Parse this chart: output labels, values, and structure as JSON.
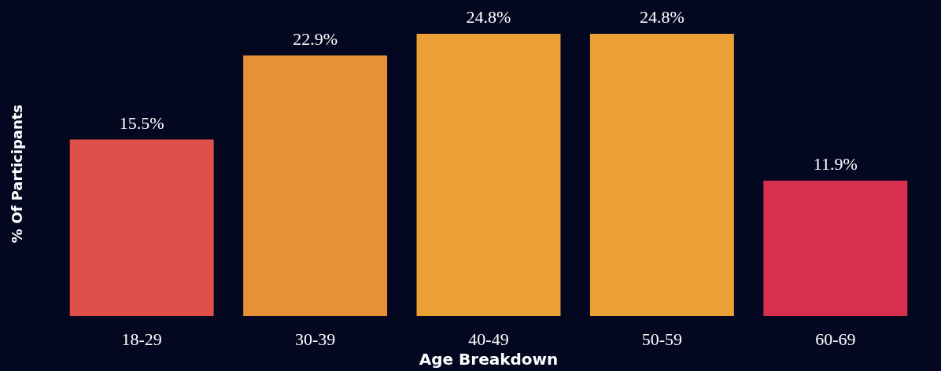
{
  "chart_data": {
    "type": "bar",
    "xlabel": "Age Breakdown",
    "ylabel": "% Of Participants",
    "categories": [
      "18-29",
      "30-39",
      "40-49",
      "50-59",
      "60-69"
    ],
    "values": [
      15.5,
      22.9,
      24.8,
      24.8,
      11.9
    ],
    "colors": [
      "#e0504a",
      "#e89035",
      "#eba035",
      "#eba035",
      "#d93050"
    ],
    "value_labels": [
      "15.5%",
      "22.9%",
      "24.8%",
      "24.8%",
      "11.9%"
    ]
  }
}
